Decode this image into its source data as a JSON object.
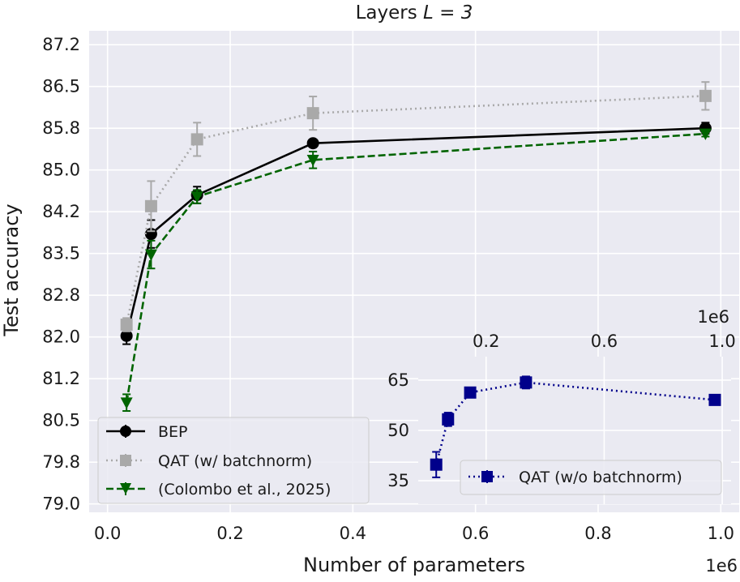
{
  "chart_data": [
    {
      "type": "line",
      "title": "Layers ",
      "title_math": "L = 3",
      "xlabel": "Number of parameters",
      "ylabel": "Test accuracy",
      "x_exponent_label": "1e6",
      "xlim": [
        -0.03,
        1.03
      ],
      "ylim": [
        78.85,
        87.5
      ],
      "xticks": [
        0.0,
        0.2,
        0.4,
        0.6,
        0.8,
        1.0
      ],
      "xtick_labels": [
        "0.0",
        "0.2",
        "0.4",
        "0.6",
        "0.8",
        "1.0"
      ],
      "yticks": [
        79.0,
        79.75,
        80.5,
        81.25,
        82.0,
        82.75,
        83.5,
        84.25,
        85.0,
        85.75,
        86.5,
        87.25
      ],
      "ytick_labels": [
        "79.0",
        "79.8",
        "80.5",
        "81.2",
        "82.0",
        "82.8",
        "83.5",
        "84.2",
        "85.0",
        "85.8",
        "86.5",
        "87.2"
      ],
      "grid": true,
      "legend_position": "lower-left",
      "series": [
        {
          "name": "BEP",
          "color": "#000000",
          "line_style": "solid",
          "marker": "circle",
          "x": [
            0.031,
            0.071,
            0.146,
            0.335,
            0.975
          ],
          "y": [
            82.02,
            83.85,
            84.55,
            85.48,
            85.75
          ],
          "err": [
            0.15,
            0.25,
            0.15,
            0.05,
            0.1
          ]
        },
        {
          "name": "QAT (w/ batchnorm)",
          "color": "#a9a9a9",
          "line_style": "dotted",
          "marker": "square",
          "x": [
            0.031,
            0.071,
            0.146,
            0.335,
            0.975
          ],
          "y": [
            82.22,
            84.35,
            85.55,
            86.02,
            86.33
          ],
          "err": [
            0.12,
            0.45,
            0.3,
            0.3,
            0.25
          ]
        },
        {
          "name": "(Colombo et al., 2025)",
          "color": "#006400",
          "line_style": "dashed",
          "marker": "triangle-down",
          "x": [
            0.031,
            0.071,
            0.146,
            0.335,
            0.975
          ],
          "y": [
            80.82,
            83.48,
            84.52,
            85.18,
            85.65
          ],
          "err": [
            0.15,
            0.25,
            0.12,
            0.15,
            0.05
          ]
        }
      ]
    },
    {
      "type": "line",
      "title": "",
      "x_exponent_label": "1e6",
      "xlim": [
        -0.03,
        1.03
      ],
      "ylim": [
        28,
        72
      ],
      "xticks": [
        0.2,
        0.6,
        1.0
      ],
      "xtick_labels": [
        "0.2",
        "0.6",
        "1.0"
      ],
      "yticks": [
        35,
        50,
        65
      ],
      "ytick_labels": [
        "35",
        "50",
        "65"
      ],
      "grid": true,
      "xaxis_position": "top",
      "legend_position": "bottom-right",
      "series": [
        {
          "name": "QAT (w/o batchnorm)",
          "color": "#00008b",
          "line_style": "dotted",
          "marker": "square",
          "x": [
            0.031,
            0.071,
            0.146,
            0.335,
            0.975
          ],
          "y": [
            39.8,
            53.3,
            61.3,
            64.3,
            59.1
          ],
          "err": [
            3.8,
            2.0,
            1.0,
            1.8,
            0.8
          ]
        }
      ]
    }
  ]
}
